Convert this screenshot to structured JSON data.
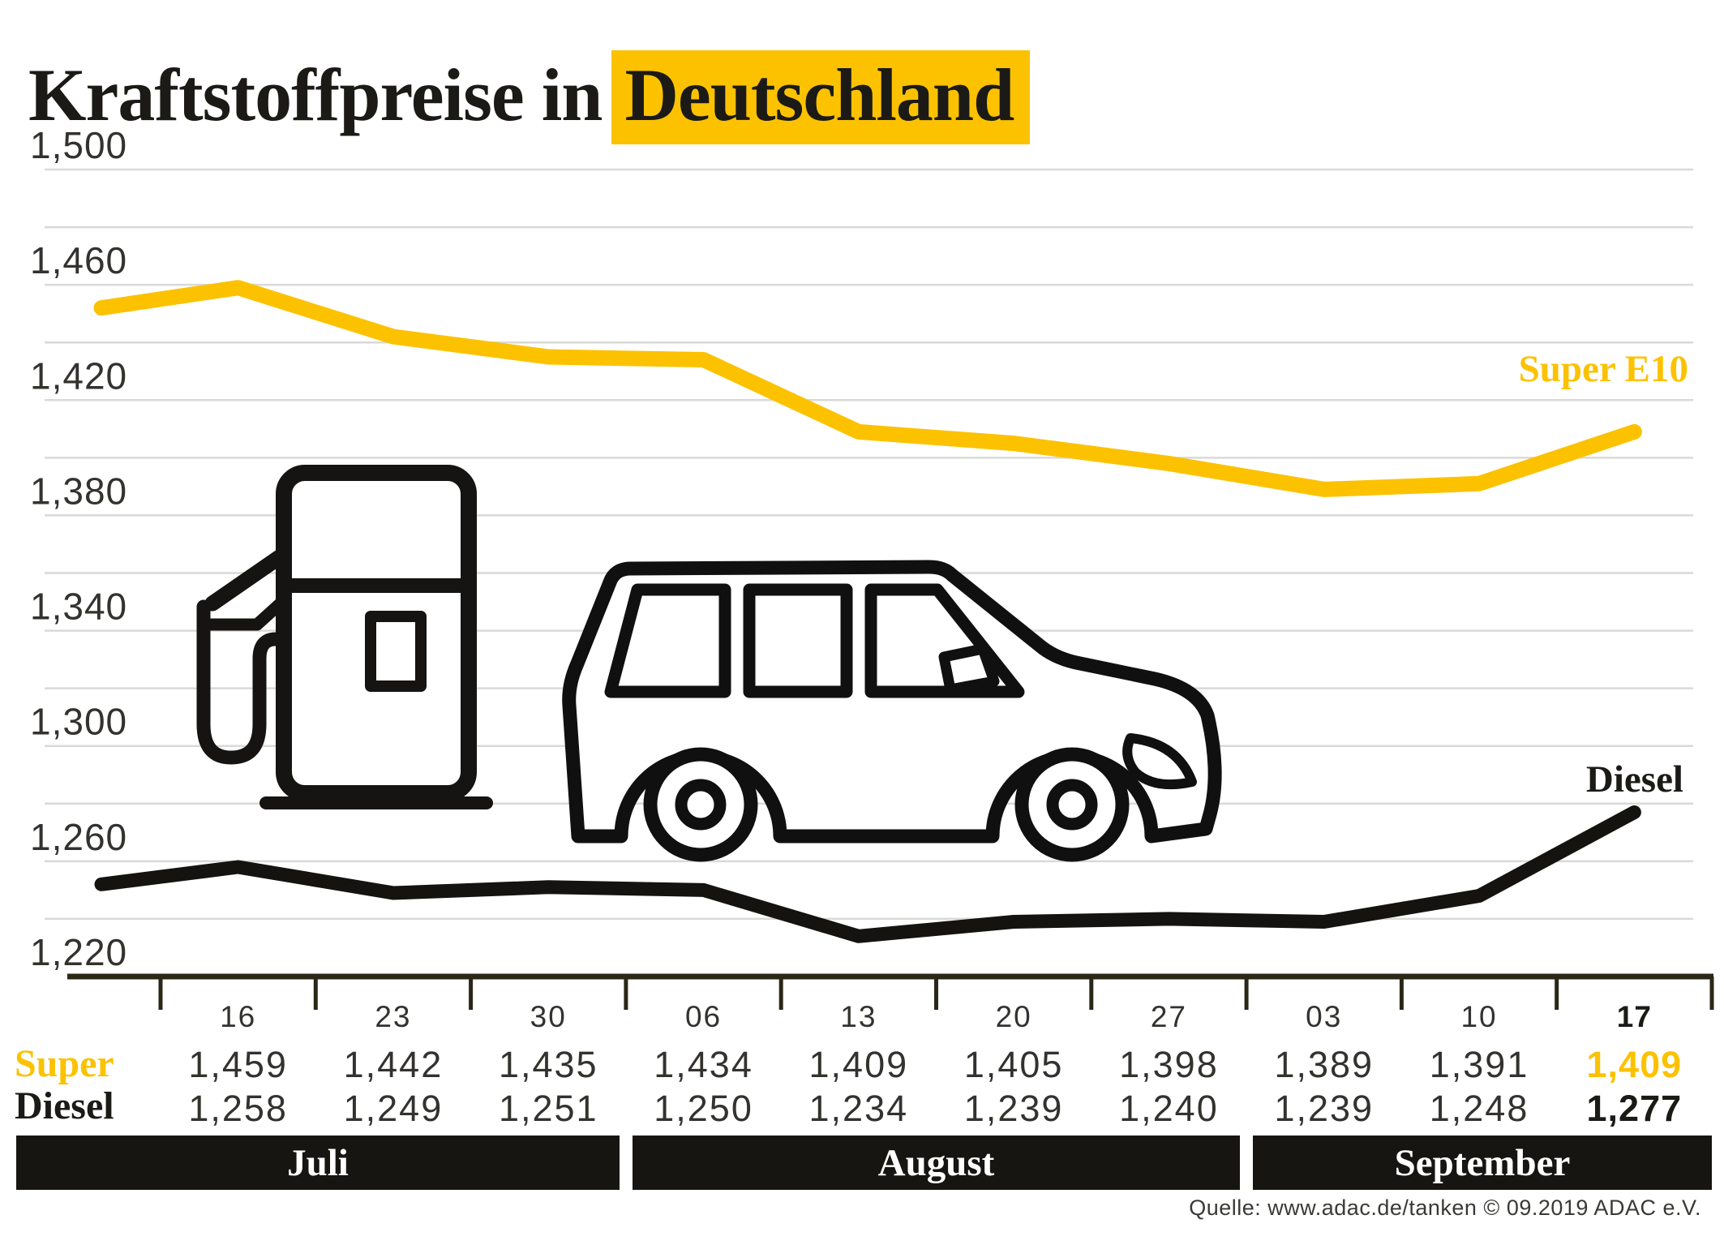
{
  "title": {
    "prefix": "Kraftstoffpreise in",
    "highlight": "Deutschland"
  },
  "colors": {
    "accent": "#fcc200",
    "ink": "#1b1a17",
    "grid": "#d9d9d7",
    "axis": "#2b2717",
    "band_bg": "#161511",
    "value_text": "#33322f"
  },
  "chart_data": {
    "type": "line",
    "title": "Kraftstoffpreise in Deutschland",
    "x_axis": {
      "categories": [
        "16",
        "23",
        "30",
        "06",
        "13",
        "20",
        "27",
        "03",
        "10",
        "17"
      ],
      "bold_last": true
    },
    "y_axis": {
      "tick_labels": [
        "1,500",
        "1,460",
        "1,420",
        "1,380",
        "1,340",
        "1,300",
        "1,260",
        "1,220"
      ],
      "range": [
        1.22,
        1.5
      ],
      "gridline_step": 0.02
    },
    "grid": true,
    "legend_position": "line-end labels inside plot",
    "series": [
      {
        "key": "super",
        "chart_label": "Super E10",
        "row_label": "Super",
        "color": "#fcc200",
        "values": [
          1.459,
          1.442,
          1.435,
          1.434,
          1.409,
          1.405,
          1.398,
          1.389,
          1.391,
          1.409
        ],
        "lead_in": 1.452
      },
      {
        "key": "diesel",
        "chart_label": "Diesel",
        "row_label": "Diesel",
        "color": "#141310",
        "values": [
          1.258,
          1.249,
          1.251,
          1.25,
          1.234,
          1.239,
          1.24,
          1.239,
          1.248,
          1.277
        ],
        "lead_in": 1.252
      }
    ],
    "months": [
      {
        "label": "Juli"
      },
      {
        "label": "August"
      },
      {
        "label": "September"
      }
    ]
  },
  "source": "Quelle: www.adac.de/tanken   © 09.2019   ADAC e.V."
}
